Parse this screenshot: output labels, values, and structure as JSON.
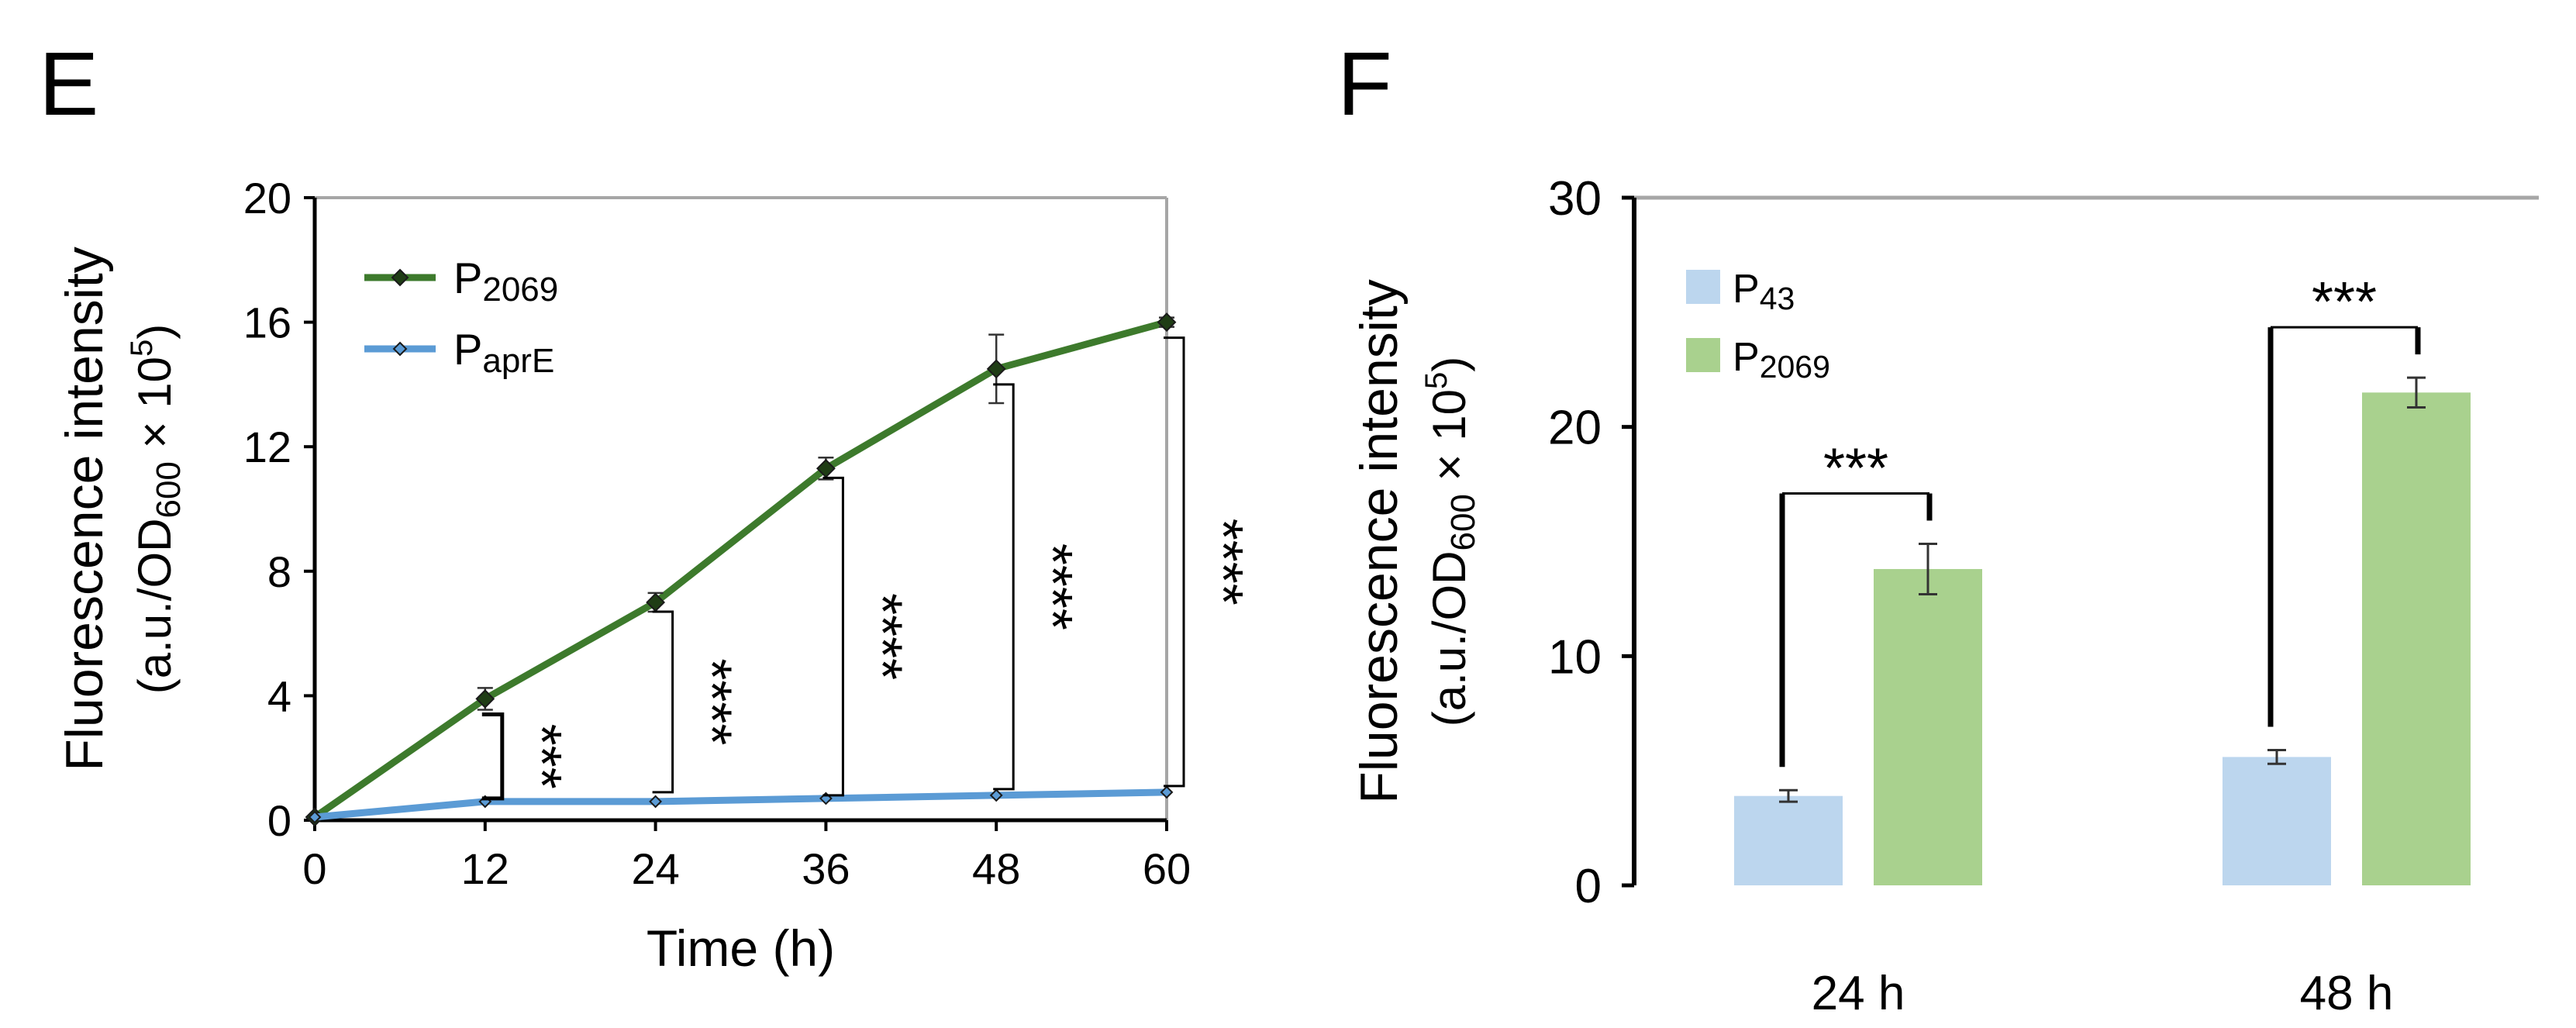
{
  "panels": {
    "e": {
      "letter": "E"
    },
    "f": {
      "letter": "F"
    }
  },
  "chart_data": [
    {
      "type": "line",
      "title": "",
      "xlabel": "Time (h)",
      "ylabel_line1": "Fluorescence intensity",
      "ylabel_line2": {
        "prefix": "(a.u./OD",
        "sub": "600",
        "mid": " × 10",
        "sup": "5",
        "suffix": ")"
      },
      "xlim": [
        0,
        60
      ],
      "ylim": [
        0,
        20
      ],
      "x": [
        0,
        12,
        24,
        36,
        48,
        60
      ],
      "xticks": [
        "0",
        "12",
        "24",
        "36",
        "48",
        "60"
      ],
      "yticks": [
        "0",
        "4",
        "8",
        "12",
        "16",
        "20"
      ],
      "ytick_values": [
        0,
        4,
        8,
        12,
        16,
        20
      ],
      "grid": false,
      "legend_position": "top-left",
      "series": [
        {
          "name": {
            "base": "P",
            "sub": "2069"
          },
          "color": "#3d7a2c",
          "marker": "diamond",
          "values": [
            0.1,
            3.9,
            7.0,
            11.3,
            14.5,
            16.0
          ],
          "errors": [
            0,
            0.35,
            0.3,
            0.35,
            1.1,
            0.15
          ]
        },
        {
          "name": {
            "base": "P",
            "sub": "aprE"
          },
          "color": "#5b9bd5",
          "marker": "diamond",
          "values": [
            0.1,
            0.6,
            0.6,
            0.7,
            0.8,
            0.9
          ],
          "errors": [
            0,
            0,
            0,
            0,
            0,
            0
          ]
        }
      ],
      "annotations": [
        {
          "x": 12,
          "label": "***",
          "y_low": 0.7,
          "y_high": 3.4
        },
        {
          "x": 24,
          "label": "****",
          "y_low": 0.9,
          "y_high": 6.7
        },
        {
          "x": 36,
          "label": "****",
          "y_low": 0.8,
          "y_high": 11.0
        },
        {
          "x": 48,
          "label": "****",
          "y_low": 1.0,
          "y_high": 14.0
        },
        {
          "x": 60,
          "label": "****",
          "y_low": 1.1,
          "y_high": 15.5
        }
      ]
    },
    {
      "type": "bar",
      "title": "",
      "xlabel": "",
      "ylabel_line1": "Fluorescence intensity",
      "ylabel_line2": {
        "prefix": "(a.u./OD",
        "sub": "600",
        "mid": " × 10",
        "sup": "5",
        "suffix": ")"
      },
      "ylim": [
        0,
        30
      ],
      "categories": [
        "24 h",
        "48 h"
      ],
      "yticks": [
        "0",
        "10",
        "20",
        "30"
      ],
      "ytick_values": [
        0,
        10,
        20,
        30
      ],
      "grid": false,
      "legend_position": "top-left",
      "series": [
        {
          "name": {
            "base": "P",
            "sub": "43"
          },
          "color": "#bcd6ee",
          "values": [
            3.9,
            5.6
          ],
          "errors": [
            0.25,
            0.3
          ]
        },
        {
          "name": {
            "base": "P",
            "sub": "2069"
          },
          "color": "#a9d18e",
          "values": [
            13.8,
            21.5
          ],
          "errors": [
            1.1,
            0.65
          ]
        }
      ],
      "annotations": [
        {
          "category_index": 0,
          "label": "***"
        },
        {
          "category_index": 1,
          "label": "***"
        }
      ]
    }
  ]
}
